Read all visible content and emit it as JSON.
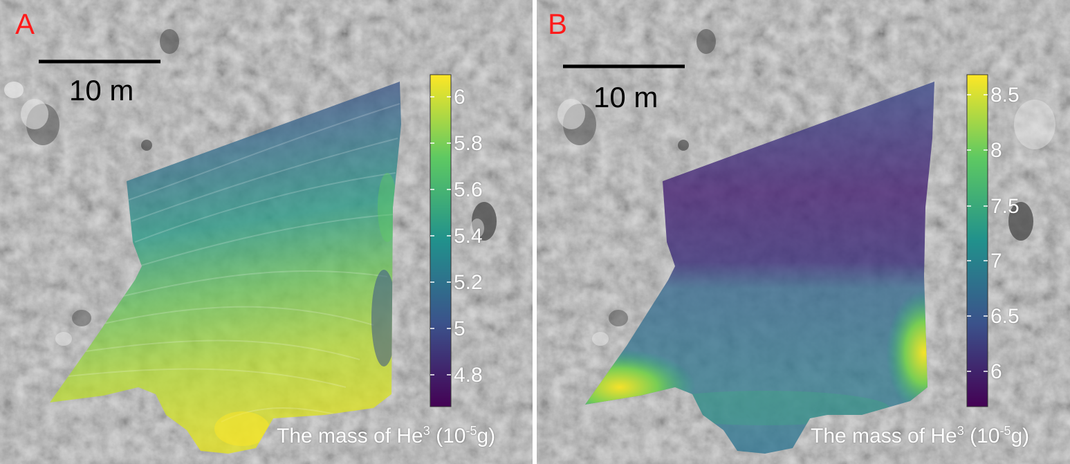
{
  "panels": [
    {
      "label": "A",
      "scale_bar": "10 m",
      "colorbar": {
        "ticks": [
          "6",
          "5.8",
          "5.6",
          "5.4",
          "5.2",
          "5",
          "4.8"
        ],
        "title_main": "The mass of He",
        "title_sup": "3",
        "title_unit_open": " (10",
        "title_unit_sup": "-5",
        "title_unit_close": "g)"
      }
    },
    {
      "label": "B",
      "scale_bar": "10 m",
      "colorbar": {
        "ticks": [
          "8.5",
          "8",
          "7.5",
          "7",
          "6.5",
          "6"
        ],
        "title_main": "The mass of He",
        "title_sup": "3",
        "title_unit_open": " (10",
        "title_unit_sup": "-5",
        "title_unit_close": "g)"
      }
    }
  ],
  "colors": {
    "panel_label": "#ff1a1a",
    "colormap": [
      "#440154",
      "#3b528b",
      "#21918c",
      "#5ec962",
      "#fde725"
    ],
    "background": "#9a9a9a"
  }
}
